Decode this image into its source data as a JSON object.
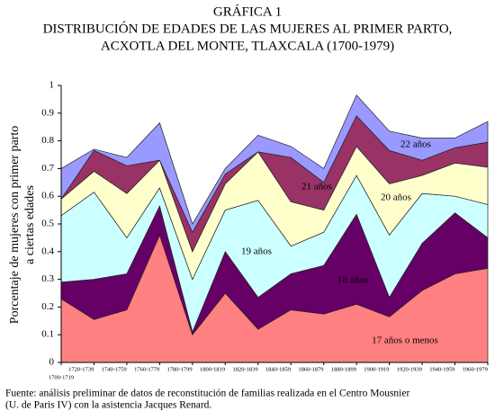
{
  "chart_data": {
    "type": "stacked_area",
    "title": [
      "GRÁFICA 1",
      "DISTRIBUCIÓN DE EDADES DE LAS MUJERES AL PRIMER PARTO,",
      "ACXOTLA DEL MONTE, TLAXCALA (1700-1979)"
    ],
    "y_label": [
      "Porcentaje de mujeres con primer parto",
      "a ciertas edades"
    ],
    "source": [
      "Fuente: análisis preliminar de datos de reconstitución de familias realizada en el Centro Mousnier",
      "(U. de Paris IV) con la asistencia Jacques Renard."
    ],
    "categories": [
      "1700-1719",
      "1720-1739",
      "1740-1759",
      "1760-1779",
      "1780-1799",
      "1800-1819",
      "1820-1839",
      "1840-1859",
      "1860-1879",
      "1880-1899",
      "1900-1919",
      "1920-1939",
      "1940-1959",
      "1960-1979"
    ],
    "series": [
      {
        "name": "17 años o menos",
        "color": "#ff8080",
        "values": [
          0.23,
          0.155,
          0.19,
          0.46,
          0.1,
          0.25,
          0.12,
          0.19,
          0.175,
          0.21,
          0.165,
          0.26,
          0.32,
          0.34
        ]
      },
      {
        "name": "18 años",
        "color": "#660066",
        "values": [
          0.06,
          0.145,
          0.13,
          0.105,
          0.01,
          0.15,
          0.115,
          0.13,
          0.175,
          0.325,
          0.07,
          0.17,
          0.22,
          0.11
        ]
      },
      {
        "name": "19 años",
        "color": "#ccffff",
        "values": [
          0.24,
          0.315,
          0.13,
          0.065,
          0.19,
          0.15,
          0.35,
          0.1,
          0.12,
          0.14,
          0.225,
          0.18,
          0.06,
          0.12
        ]
      },
      {
        "name": "20 años",
        "color": "#ffffcc",
        "values": [
          0.06,
          0.075,
          0.16,
          0.1,
          0.1,
          0.095,
          0.175,
          0.16,
          0.08,
          0.105,
          0.185,
          0.065,
          0.12,
          0.135
        ]
      },
      {
        "name": "21 años",
        "color": "#993366",
        "values": [
          0,
          0.075,
          0.1,
          0,
          0.07,
          0.035,
          0,
          0.16,
          0.1,
          0.11,
          0.12,
          0.055,
          0.055,
          0.09
        ]
      },
      {
        "name": "22 años",
        "color": "#9999ff",
        "values": [
          0.11,
          0.005,
          0.03,
          0.135,
          0.03,
          0.02,
          0.06,
          0.04,
          0.05,
          0.075,
          0.07,
          0.08,
          0.035,
          0.075
        ]
      }
    ],
    "ylim": [
      0,
      1
    ],
    "yticks": [
      0,
      0.1,
      0.2,
      0.3,
      0.4,
      0.5,
      0.6,
      0.7,
      0.8,
      0.9,
      1
    ],
    "grid": false
  }
}
